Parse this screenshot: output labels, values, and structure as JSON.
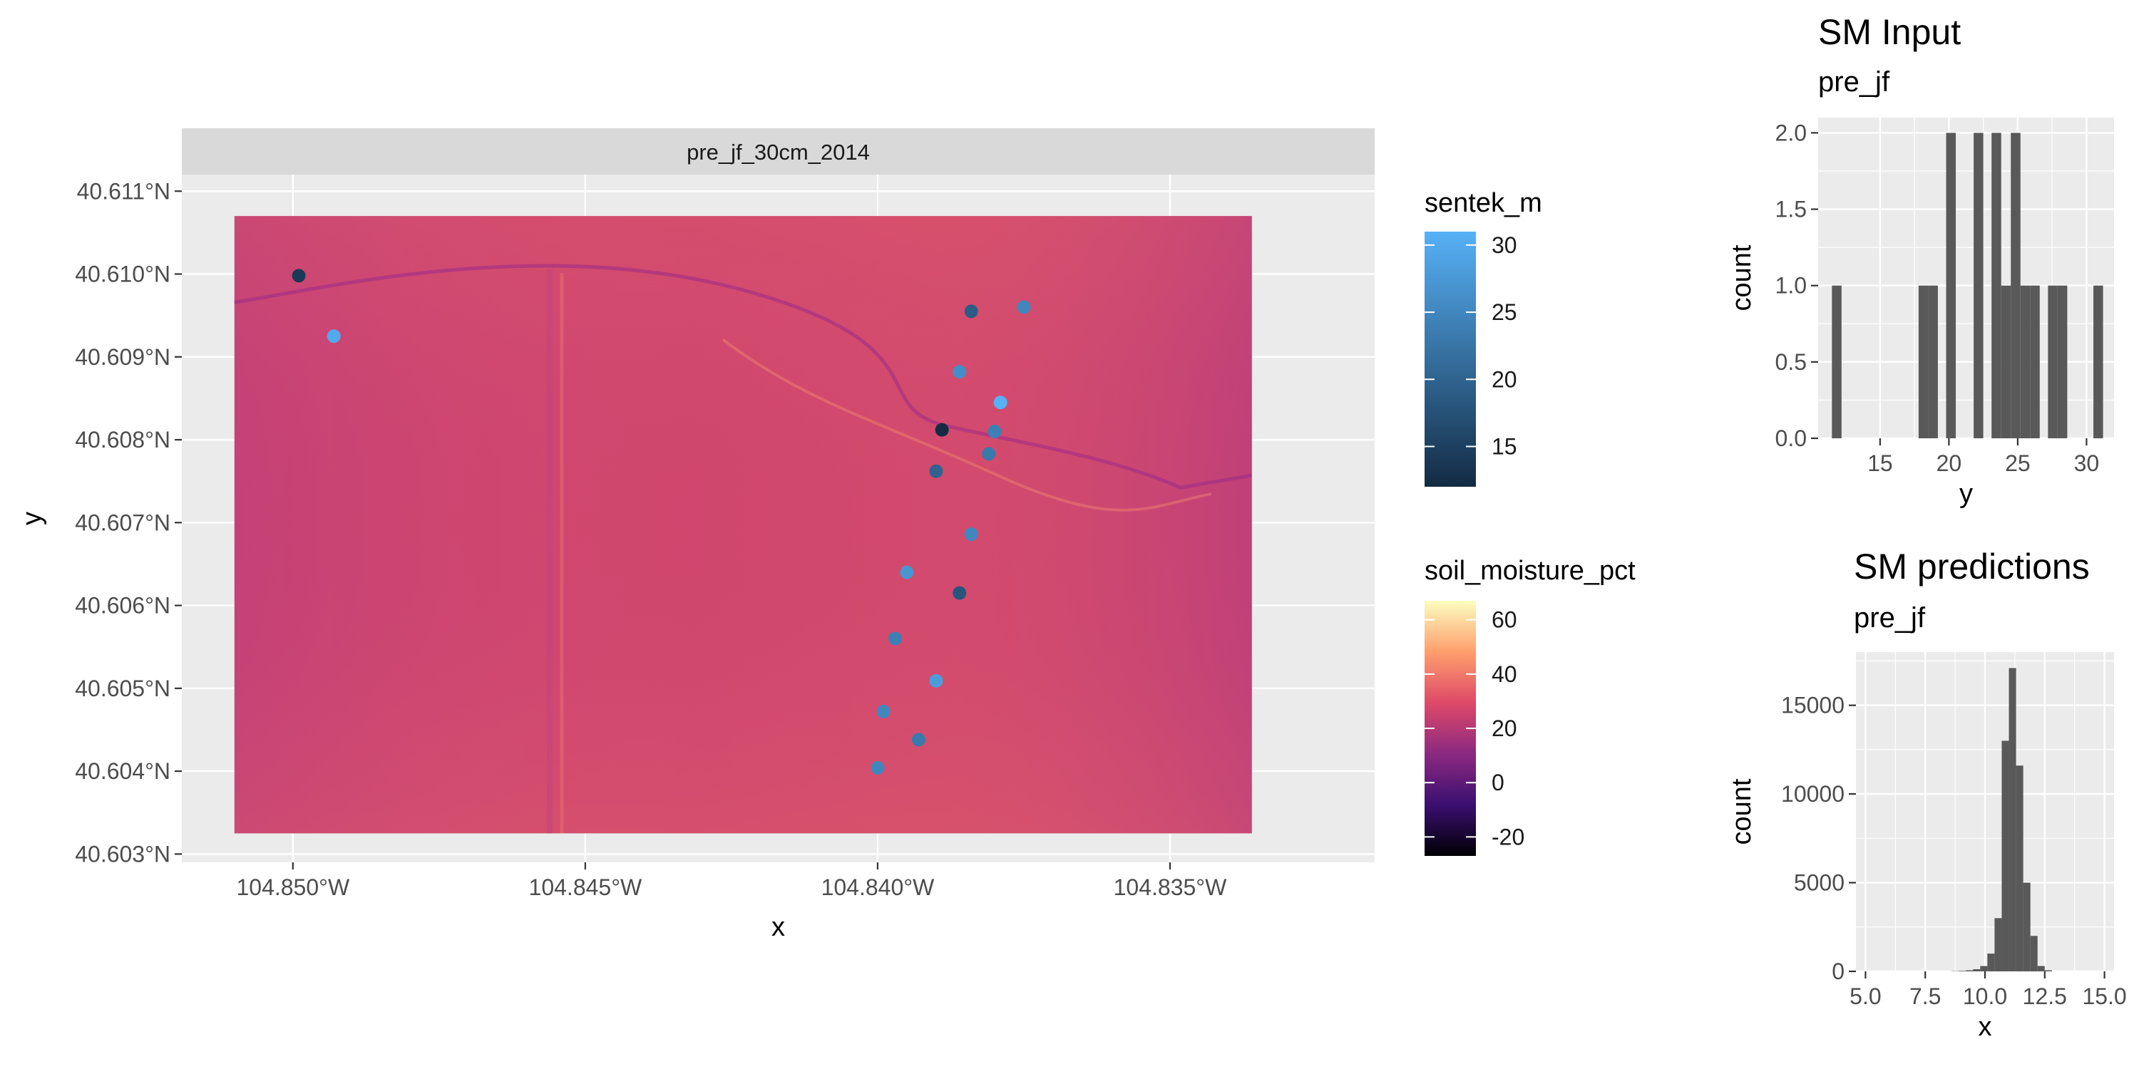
{
  "chart_data": [
    {
      "type": "raster-map",
      "facet_label": "pre_jf_30cm_2014",
      "xlabel": "x",
      "ylabel": "y",
      "xlim": [
        -104.8519,
        -104.8315
      ],
      "ylim": [
        40.6029,
        40.6112
      ],
      "x_ticks": [
        {
          "value": -104.85,
          "label": "104.850°W"
        },
        {
          "value": -104.845,
          "label": "104.845°W"
        },
        {
          "value": -104.84,
          "label": "104.840°W"
        },
        {
          "value": -104.835,
          "label": "104.835°W"
        }
      ],
      "y_ticks": [
        {
          "value": 40.603,
          "label": "40.603°N"
        },
        {
          "value": 40.604,
          "label": "40.604°N"
        },
        {
          "value": 40.605,
          "label": "40.605°N"
        },
        {
          "value": 40.606,
          "label": "40.606°N"
        },
        {
          "value": 40.607,
          "label": "40.607°N"
        },
        {
          "value": 40.608,
          "label": "40.608°N"
        },
        {
          "value": 40.609,
          "label": "40.609°N"
        },
        {
          "value": 40.61,
          "label": "40.610°N"
        },
        {
          "value": 40.611,
          "label": "40.611°N"
        }
      ],
      "raster_extent": {
        "x": [
          -104.851,
          -104.8336
        ],
        "y": [
          40.60325,
          40.6107
        ]
      },
      "raster_typical_value": 25,
      "grid": true,
      "points_legend": {
        "title": "sentek_m",
        "breaks": [
          30,
          25,
          20,
          15
        ],
        "range": [
          12,
          31
        ],
        "colors": [
          "#132B43",
          "#56B1F7"
        ]
      },
      "raster_legend": {
        "title": "soil_moisture_pct",
        "breaks": [
          60,
          40,
          20,
          0,
          -20
        ],
        "range": [
          -27,
          67
        ],
        "colors": [
          "#000004",
          "#3b0f70",
          "#8c2981",
          "#de4968",
          "#fe9f6d",
          "#fcfdbf"
        ]
      },
      "points": [
        {
          "x": -104.8499,
          "y": 40.60998,
          "value": 14
        },
        {
          "x": -104.8493,
          "y": 40.60925,
          "value": 30
        },
        {
          "x": -104.8384,
          "y": 40.60955,
          "value": 19
        },
        {
          "x": -104.8375,
          "y": 40.6096,
          "value": 25
        },
        {
          "x": -104.8386,
          "y": 40.60882,
          "value": 26
        },
        {
          "x": -104.8379,
          "y": 40.60845,
          "value": 31
        },
        {
          "x": -104.8389,
          "y": 40.60812,
          "value": 12
        },
        {
          "x": -104.838,
          "y": 40.6081,
          "value": 24
        },
        {
          "x": -104.8381,
          "y": 40.60783,
          "value": 23
        },
        {
          "x": -104.839,
          "y": 40.60762,
          "value": 20
        },
        {
          "x": -104.8384,
          "y": 40.60686,
          "value": 25
        },
        {
          "x": -104.8395,
          "y": 40.6064,
          "value": 27
        },
        {
          "x": -104.8386,
          "y": 40.60615,
          "value": 18
        },
        {
          "x": -104.8397,
          "y": 40.6056,
          "value": 24
        },
        {
          "x": -104.839,
          "y": 40.60509,
          "value": 28
        },
        {
          "x": -104.8399,
          "y": 40.60472,
          "value": 25
        },
        {
          "x": -104.8393,
          "y": 40.60438,
          "value": 23
        },
        {
          "x": -104.84,
          "y": 40.60404,
          "value": 25
        }
      ]
    },
    {
      "type": "bar",
      "title": "SM Input",
      "subtitle": "pre_jf",
      "xlabel": "y",
      "ylabel": "count",
      "xlim": [
        10.5,
        32
      ],
      "ylim": [
        0,
        2.1
      ],
      "x_ticks": [
        15,
        20,
        25,
        30
      ],
      "y_ticks": [
        "0.0",
        "0.5",
        "1.0",
        "1.5",
        "2.0"
      ],
      "bins": [
        {
          "x0": 11.5,
          "x1": 12.2,
          "count": 1
        },
        {
          "x0": 17.8,
          "x1": 18.5,
          "count": 1
        },
        {
          "x0": 18.5,
          "x1": 19.2,
          "count": 1
        },
        {
          "x0": 19.8,
          "x1": 20.5,
          "count": 2
        },
        {
          "x0": 21.8,
          "x1": 22.5,
          "count": 2
        },
        {
          "x0": 23.1,
          "x1": 23.8,
          "count": 2
        },
        {
          "x0": 23.8,
          "x1": 24.5,
          "count": 1
        },
        {
          "x0": 24.5,
          "x1": 25.2,
          "count": 2
        },
        {
          "x0": 25.2,
          "x1": 25.9,
          "count": 1
        },
        {
          "x0": 25.9,
          "x1": 26.6,
          "count": 1
        },
        {
          "x0": 27.2,
          "x1": 27.9,
          "count": 1
        },
        {
          "x0": 27.9,
          "x1": 28.6,
          "count": 1
        },
        {
          "x0": 30.5,
          "x1": 31.2,
          "count": 1
        }
      ]
    },
    {
      "type": "bar",
      "title": "SM predictions",
      "subtitle": "pre_jf",
      "xlabel": "x",
      "ylabel": "count",
      "xlim": [
        4.6,
        15.4
      ],
      "ylim": [
        0,
        18000
      ],
      "x_ticks": [
        "5.0",
        "7.5",
        "10.0",
        "12.5",
        "15.0"
      ],
      "y_ticks": [
        0,
        5000,
        10000,
        15000
      ],
      "bins": [
        {
          "x0": 8.6,
          "x1": 8.9,
          "count": 15
        },
        {
          "x0": 8.9,
          "x1": 9.2,
          "count": 30
        },
        {
          "x0": 9.2,
          "x1": 9.5,
          "count": 60
        },
        {
          "x0": 9.5,
          "x1": 9.8,
          "count": 120
        },
        {
          "x0": 9.8,
          "x1": 10.1,
          "count": 300
        },
        {
          "x0": 10.1,
          "x1": 10.4,
          "count": 1000
        },
        {
          "x0": 10.4,
          "x1": 10.7,
          "count": 3000
        },
        {
          "x0": 10.7,
          "x1": 11.0,
          "count": 13000
        },
        {
          "x0": 11.0,
          "x1": 11.3,
          "count": 17100
        },
        {
          "x0": 11.3,
          "x1": 11.6,
          "count": 11600
        },
        {
          "x0": 11.6,
          "x1": 11.9,
          "count": 5000
        },
        {
          "x0": 11.9,
          "x1": 12.2,
          "count": 2000
        },
        {
          "x0": 12.2,
          "x1": 12.5,
          "count": 300
        },
        {
          "x0": 12.5,
          "x1": 12.8,
          "count": 60
        }
      ]
    }
  ]
}
